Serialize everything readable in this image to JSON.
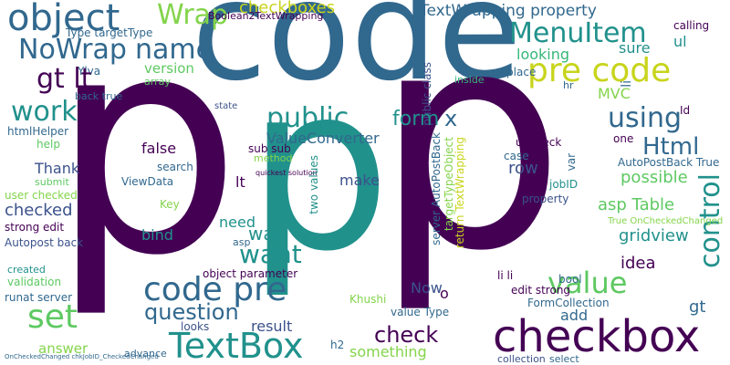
{
  "palette": {
    "purple": "#440154",
    "blue": "#31688e",
    "teal": "#21918c",
    "green": "#5ec962",
    "yellow": "#c8d41b",
    "lime": "#84d44b",
    "cyan": "#35b779",
    "indigo": "#3b528b"
  },
  "words": {
    "code": "code",
    "p_left": "p",
    "p_mid": "p",
    "p_right": "p",
    "checkbox": "checkbox",
    "textbox": "TextBox",
    "object": "object",
    "wrap": "Wrap",
    "nowrap": "NoWrap",
    "name": "name",
    "gt_lt": "gt lt",
    "work": "work",
    "version": "version",
    "array": "array",
    "type_target": "Type targetType",
    "ylva": "Ylva",
    "back_true": "back true",
    "html_helper": "htmlHelper",
    "help": "help",
    "thank": "Thank",
    "submit": "submit",
    "user_checked": "user checked",
    "checked": "checked",
    "strong_edit": "strong edit",
    "autopost_back": "Autopost back",
    "created": "created",
    "validation": "validation",
    "runat_server": "runat server",
    "set": "set",
    "answer": "answer",
    "advance": "advance",
    "boolean2": "Boolean2TextWrapping",
    "checkboxes": "checkboxes",
    "textwrapping_prop": "TextWrapping property",
    "menuitem": "MenuItem",
    "pre_code_top": "pre code",
    "looking": "looking",
    "sure": "sure",
    "ul": "ul",
    "calling": "calling",
    "public_class": "public class",
    "replace": "replace",
    "inside": "inside",
    "public": "public",
    "form": "form",
    "x": "x",
    "using": "using",
    "mvc": "MVC",
    "li": "li",
    "hr": "hr",
    "id": "Id",
    "value_converter": "ValueConverter",
    "html": "Html",
    "one": "one",
    "false": "false",
    "search": "search",
    "sub_sub": "sub sub",
    "method": "method",
    "quickest": "quickest solution",
    "two_values": "two values",
    "viewdata": "ViewData",
    "lt": "lt",
    "key": "Key",
    "make": "make",
    "need": "need",
    "way": "way",
    "bind": "bind",
    "asp": "asp",
    "want": "want",
    "object_param": "object parameter",
    "server_autopostback": "server AutoPostBack",
    "target_type_object": "targetTypeObject",
    "return_textwrapping": "return TextWrapping",
    "check": "check",
    "uncheck": "uncheck",
    "case": "case",
    "row": "row",
    "jobid": "jobID",
    "var": "var",
    "autopostback_true": "AutoPostBack True",
    "possible": "possible",
    "asp_table": "asp Table",
    "gridview": "gridview",
    "true_onchecked": "True OnCheckedChanged",
    "property": "property",
    "idea": "idea",
    "control": "control",
    "code_pre": "code pre",
    "question": "question",
    "value": "value",
    "value_type": "value Type",
    "khushi": "Khushi",
    "now": "Now",
    "o": "o",
    "li_li": "li li",
    "bool": "bool",
    "edit_strong": "edit strong",
    "formcollection": "FormCollection",
    "add": "add",
    "gt": "gt",
    "looks": "looks",
    "result": "result",
    "h2": "h2",
    "something": "something",
    "collection": "collection",
    "select": "select",
    "state": "state",
    "onchecked_bottom": "OnCheckedChanged chkJobID_CheckedChanged"
  }
}
